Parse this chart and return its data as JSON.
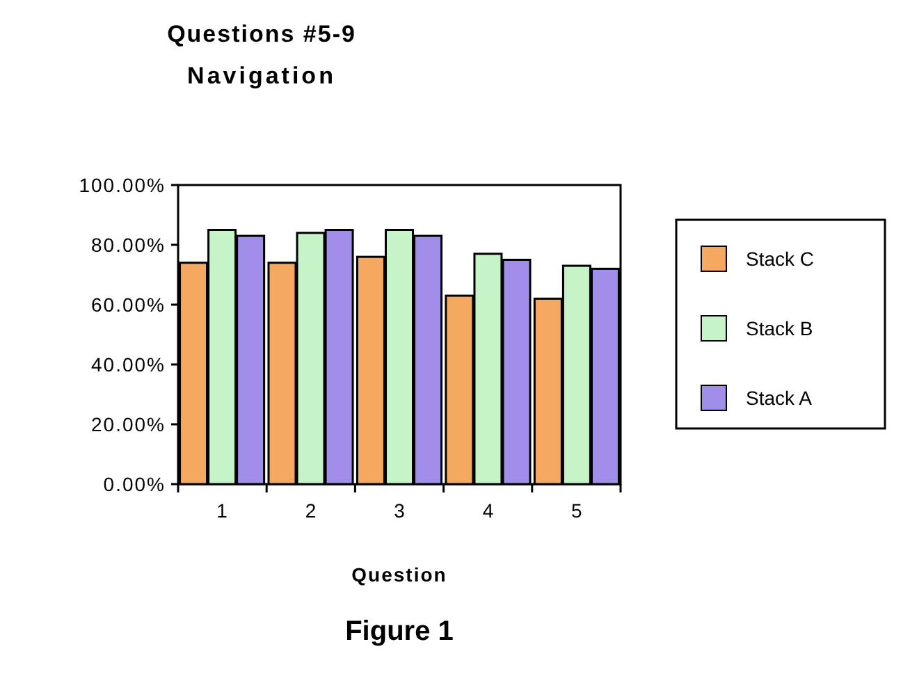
{
  "chart_data": {
    "type": "bar",
    "title": "Questions #5-9",
    "subtitle": "Navigation",
    "xlabel": "Question",
    "annotations": [
      "Figure 1"
    ],
    "categories": [
      "1",
      "2",
      "3",
      "4",
      "5"
    ],
    "series": [
      {
        "name": "Stack C",
        "color": "#f5a860",
        "values": [
          74,
          74,
          76,
          63,
          62
        ]
      },
      {
        "name": "Stack B",
        "color": "#c6f3c8",
        "values": [
          85,
          84,
          85,
          77,
          73
        ]
      },
      {
        "name": "Stack A",
        "color": "#a08ee8",
        "values": [
          83,
          85,
          83,
          75,
          72
        ]
      }
    ],
    "ylim": [
      0,
      100
    ],
    "yticks": [
      {
        "value": 0,
        "label": "0.00%"
      },
      {
        "value": 20,
        "label": "20.00%"
      },
      {
        "value": 40,
        "label": "40.00%"
      },
      {
        "value": 60,
        "label": "60.00%"
      },
      {
        "value": 80,
        "label": "80.00%"
      },
      {
        "value": 100,
        "label": "100.00%"
      }
    ],
    "legend": "right"
  }
}
